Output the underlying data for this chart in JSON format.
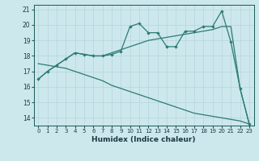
{
  "xlabel": "Humidex (Indice chaleur)",
  "bg_color": "#cce8ec",
  "grid_color": "#b8d8de",
  "line_color": "#2d7a72",
  "xlim": [
    -0.5,
    23.5
  ],
  "ylim": [
    13.5,
    21.3
  ],
  "yticks": [
    14,
    15,
    16,
    17,
    18,
    19,
    20,
    21
  ],
  "xticks": [
    0,
    1,
    2,
    3,
    4,
    5,
    6,
    7,
    8,
    9,
    10,
    11,
    12,
    13,
    14,
    15,
    16,
    17,
    18,
    19,
    20,
    21,
    22,
    23
  ],
  "line_jagged": {
    "x": [
      0,
      1,
      2,
      3,
      4,
      5,
      6,
      7,
      8,
      9,
      10,
      11,
      12,
      13,
      14,
      15,
      16,
      17,
      18,
      19,
      20,
      21,
      22,
      23
    ],
    "y": [
      16.5,
      17.0,
      17.4,
      17.8,
      18.2,
      18.1,
      18.0,
      18.0,
      18.1,
      18.3,
      19.9,
      20.1,
      19.5,
      19.5,
      18.6,
      18.6,
      19.6,
      19.6,
      19.9,
      19.9,
      20.9,
      18.9,
      15.9,
      13.6
    ]
  },
  "line_smooth": {
    "x": [
      0,
      1,
      2,
      3,
      4,
      5,
      6,
      7,
      8,
      9,
      10,
      11,
      12,
      13,
      14,
      15,
      16,
      17,
      18,
      19,
      20,
      21,
      22,
      23
    ],
    "y": [
      16.5,
      17.0,
      17.4,
      17.8,
      18.2,
      18.1,
      18.0,
      18.0,
      18.2,
      18.4,
      18.6,
      18.8,
      19.0,
      19.1,
      19.2,
      19.3,
      19.4,
      19.5,
      19.6,
      19.7,
      19.9,
      19.9,
      15.9,
      13.6
    ]
  },
  "line_diag": {
    "x": [
      0,
      1,
      2,
      3,
      4,
      5,
      6,
      7,
      8,
      9,
      10,
      11,
      12,
      13,
      14,
      15,
      16,
      17,
      18,
      19,
      20,
      21,
      22,
      23
    ],
    "y": [
      17.5,
      17.4,
      17.3,
      17.2,
      17.0,
      16.8,
      16.6,
      16.4,
      16.1,
      15.9,
      15.7,
      15.5,
      15.3,
      15.1,
      14.9,
      14.7,
      14.5,
      14.3,
      14.2,
      14.1,
      14.0,
      13.9,
      13.8,
      13.6
    ]
  }
}
